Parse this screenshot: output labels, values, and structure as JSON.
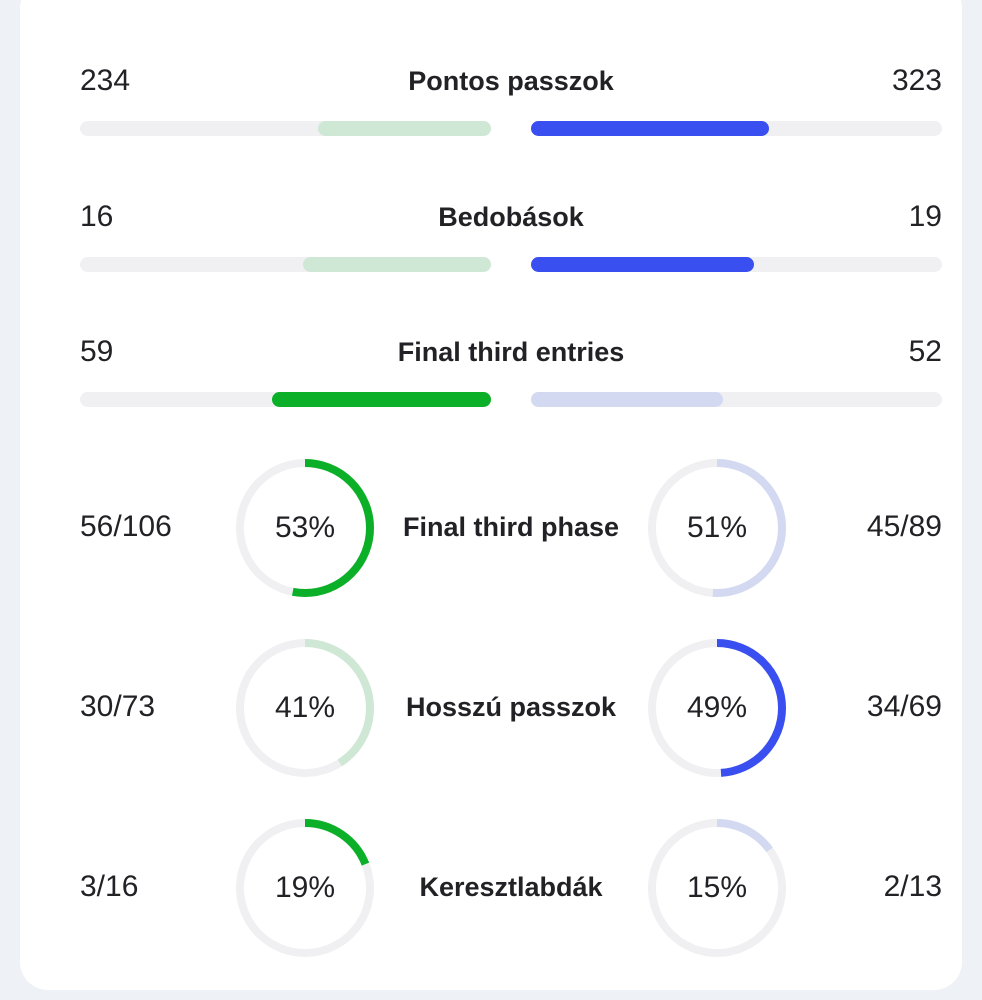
{
  "colors": {
    "track": "#f0f0f2",
    "green_strong": "#0bb028",
    "green_light": "#cfe8d5",
    "blue_strong": "#3a4ff0",
    "blue_light": "#d4d9f2"
  },
  "bar_stats": [
    {
      "label": "Pontos passzok",
      "home": "234",
      "away": "323",
      "home_fraction": 0.42,
      "away_fraction": 0.58,
      "leader": "away"
    },
    {
      "label": "Bedobások",
      "home": "16",
      "away": "19",
      "home_fraction": 0.457,
      "away_fraction": 0.543,
      "leader": "away"
    },
    {
      "label": "Final third entries",
      "home": "59",
      "away": "52",
      "home_fraction": 0.532,
      "away_fraction": 0.468,
      "leader": "home"
    }
  ],
  "ring_stats": [
    {
      "label": "Final third phase",
      "home": "56/106",
      "home_pct": "53%",
      "home_fraction": 0.53,
      "away": "45/89",
      "away_pct": "51%",
      "away_fraction": 0.51,
      "leader": "home"
    },
    {
      "label": "Hosszú passzok",
      "home": "30/73",
      "home_pct": "41%",
      "home_fraction": 0.41,
      "away": "34/69",
      "away_pct": "49%",
      "away_fraction": 0.49,
      "leader": "away"
    },
    {
      "label": "Keresztlabdák",
      "home": "3/16",
      "home_pct": "19%",
      "home_fraction": 0.19,
      "away": "2/13",
      "away_pct": "15%",
      "away_fraction": 0.15,
      "leader": "home"
    }
  ]
}
